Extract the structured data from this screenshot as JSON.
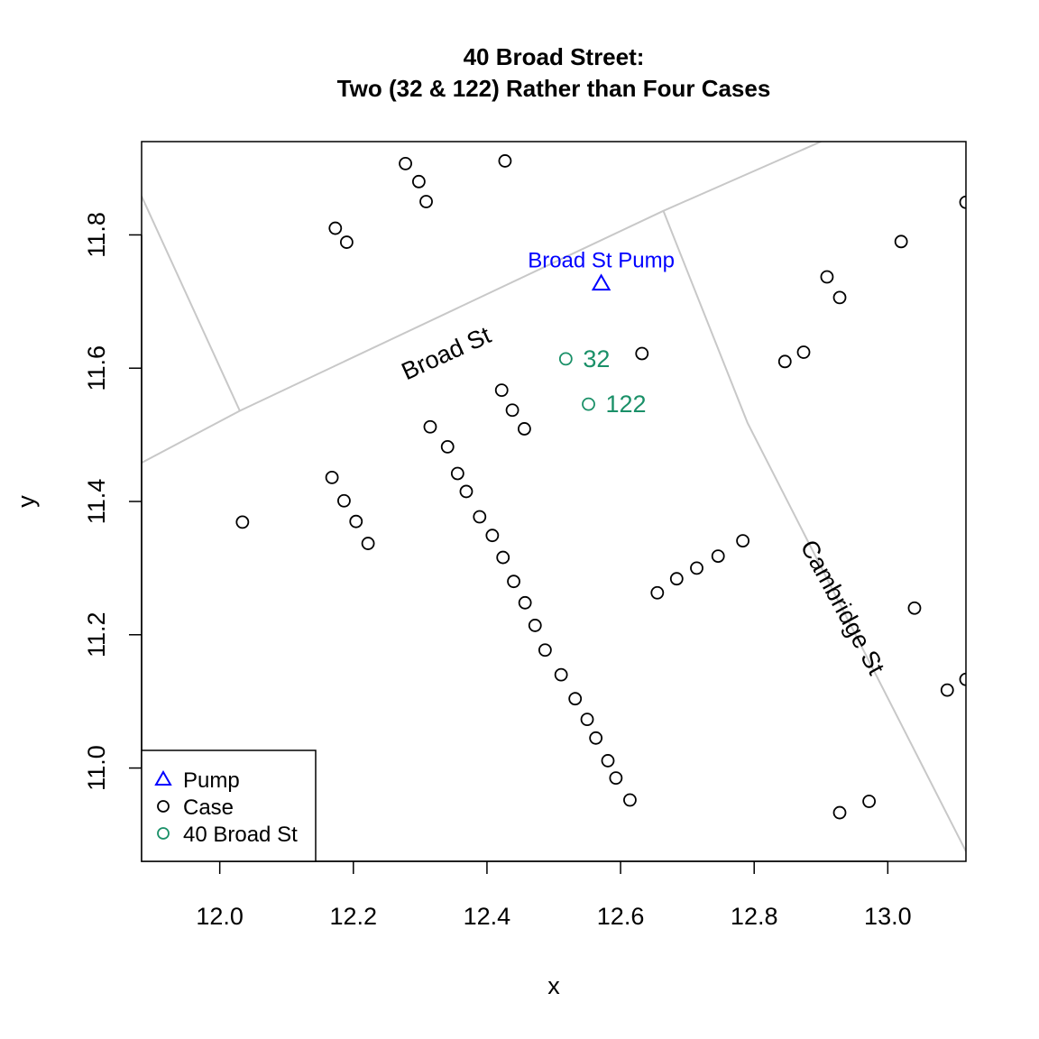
{
  "chart_data": {
    "type": "scatter",
    "title": "40 Broad Street:",
    "subtitle": "Two (32 & 122) Rather than Four Cases",
    "xlabel": "x",
    "ylabel": "y",
    "xlim": [
      11.883,
      13.117
    ],
    "ylim": [
      10.86,
      11.94
    ],
    "x_ticks": [
      "12.0",
      "12.2",
      "12.4",
      "12.6",
      "12.8",
      "13.0"
    ],
    "y_ticks": [
      "11.0",
      "11.2",
      "11.4",
      "11.6",
      "11.8"
    ],
    "colors": {
      "pump": "#0000ff",
      "case": "#000000",
      "highlight": "#1a9068",
      "road": "#c8c8c8"
    },
    "roads": [
      {
        "name": "Broad St",
        "points": [
          [
            11.883,
            11.458
          ],
          [
            12.03,
            11.536
          ],
          [
            12.664,
            11.836
          ],
          [
            12.9,
            11.94
          ]
        ]
      },
      {
        "name": "",
        "points": [
          [
            11.883,
            11.858
          ],
          [
            12.03,
            11.536
          ]
        ]
      },
      {
        "name": "Cambridge St",
        "points": [
          [
            12.664,
            11.836
          ],
          [
            12.79,
            11.518
          ],
          [
            13.117,
            10.875
          ]
        ]
      }
    ],
    "street_labels": [
      {
        "text": "Broad St",
        "x": 12.34,
        "y": 11.62,
        "angle": -24.5
      },
      {
        "text": "Cambridge St",
        "x": 12.93,
        "y": 11.24,
        "angle": 61.5
      }
    ],
    "series": [
      {
        "name": "Case",
        "color": "#000000",
        "points": [
          [
            12.278,
            11.907
          ],
          [
            12.298,
            11.88
          ],
          [
            12.309,
            11.85
          ],
          [
            12.427,
            11.911
          ],
          [
            12.173,
            11.81
          ],
          [
            12.19,
            11.789
          ],
          [
            13.117,
            11.849
          ],
          [
            13.02,
            11.79
          ],
          [
            12.909,
            11.737
          ],
          [
            12.928,
            11.706
          ],
          [
            12.846,
            11.61
          ],
          [
            12.874,
            11.624
          ],
          [
            12.632,
            11.622
          ],
          [
            12.422,
            11.567
          ],
          [
            12.438,
            11.537
          ],
          [
            12.456,
            11.509
          ],
          [
            12.315,
            11.512
          ],
          [
            12.341,
            11.482
          ],
          [
            12.356,
            11.442
          ],
          [
            12.369,
            11.415
          ],
          [
            12.389,
            11.377
          ],
          [
            12.408,
            11.349
          ],
          [
            12.424,
            11.316
          ],
          [
            12.44,
            11.28
          ],
          [
            12.457,
            11.248
          ],
          [
            12.472,
            11.214
          ],
          [
            12.487,
            11.177
          ],
          [
            12.511,
            11.14
          ],
          [
            12.532,
            11.104
          ],
          [
            12.55,
            11.073
          ],
          [
            12.563,
            11.045
          ],
          [
            12.581,
            11.011
          ],
          [
            12.593,
            10.985
          ],
          [
            12.614,
            10.952
          ],
          [
            12.168,
            11.436
          ],
          [
            12.186,
            11.401
          ],
          [
            12.204,
            11.37
          ],
          [
            12.222,
            11.337
          ],
          [
            12.034,
            11.369
          ],
          [
            12.655,
            11.263
          ],
          [
            12.684,
            11.284
          ],
          [
            12.714,
            11.3
          ],
          [
            12.746,
            11.318
          ],
          [
            12.783,
            11.341
          ],
          [
            13.04,
            11.24
          ],
          [
            13.089,
            11.117
          ],
          [
            13.117,
            11.133
          ],
          [
            12.928,
            10.933
          ],
          [
            12.972,
            10.95
          ]
        ]
      },
      {
        "name": "40 Broad St",
        "color": "#1a9068",
        "points": [
          {
            "x": 12.518,
            "y": 11.614,
            "label": "32"
          },
          {
            "x": 12.552,
            "y": 11.546,
            "label": "122"
          }
        ]
      },
      {
        "name": "Pump",
        "color": "#0000ff",
        "points": [
          {
            "x": 12.571,
            "y": 11.727,
            "label": "Broad St Pump"
          }
        ]
      }
    ],
    "legend": {
      "position": "bottom-left",
      "entries": [
        {
          "label": "Pump",
          "marker": "triangle",
          "color": "#0000ff"
        },
        {
          "label": "Case",
          "marker": "circle",
          "color": "#000000"
        },
        {
          "label": "40 Broad St",
          "marker": "circle",
          "color": "#1a9068"
        }
      ]
    },
    "grid": false
  }
}
